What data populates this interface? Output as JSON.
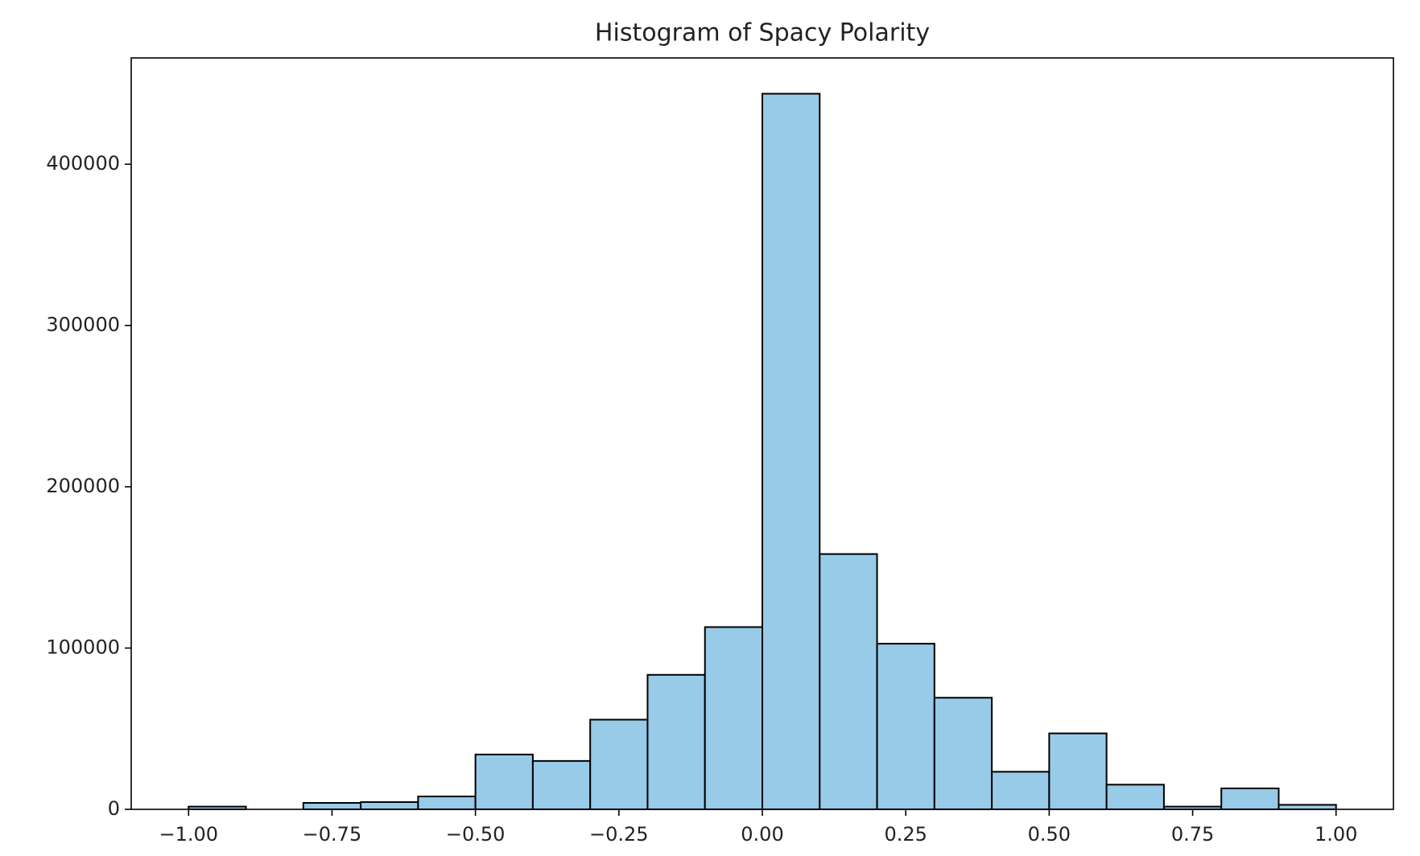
{
  "chart_data": {
    "type": "histogram",
    "title": "Histogram of Spacy Polarity",
    "bins": [
      -1.0,
      -0.9,
      -0.8,
      -0.7,
      -0.6,
      -0.5,
      -0.4,
      -0.3,
      -0.2,
      -0.1,
      0.0,
      0.1,
      0.2,
      0.3,
      0.4,
      0.5,
      0.6,
      0.7,
      0.8,
      0.9,
      1.0
    ],
    "values": [
      1700,
      0,
      4000,
      4500,
      8000,
      34000,
      30000,
      55600,
      83400,
      113000,
      443700,
      158300,
      102700,
      69200,
      23300,
      47100,
      15300,
      1700,
      13000,
      2800
    ],
    "color": "#97cbe8",
    "edgecolor": "#000000",
    "xlim": [
      -1.1,
      1.1
    ],
    "xticks": [
      {
        "value": -1.0,
        "label": "−1.00"
      },
      {
        "value": -0.75,
        "label": "−0.75"
      },
      {
        "value": -0.5,
        "label": "−0.50"
      },
      {
        "value": -0.25,
        "label": "−0.25"
      },
      {
        "value": 0.0,
        "label": "0.00"
      },
      {
        "value": 0.25,
        "label": "0.25"
      },
      {
        "value": 0.5,
        "label": "0.50"
      },
      {
        "value": 0.75,
        "label": "0.75"
      },
      {
        "value": 1.0,
        "label": "1.00"
      }
    ],
    "ylim": [
      0,
      465900
    ],
    "yticks": [
      0,
      100000,
      200000,
      300000,
      400000
    ],
    "grid": false
  }
}
